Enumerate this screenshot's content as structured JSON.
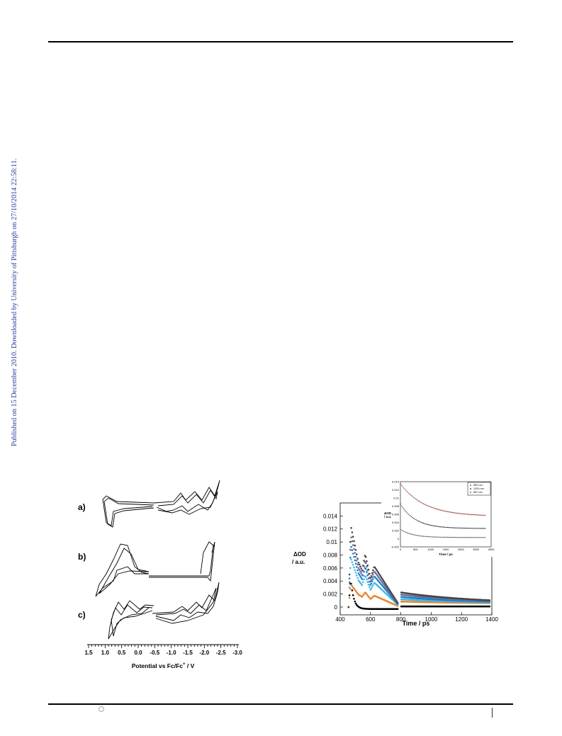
{
  "side_note": "Published on 15 December 2010. Downloaded by University of Pittsburgh on 27/10/2014 22:58:11.",
  "left_figure": {
    "panels": [
      "a)",
      "b)",
      "c)"
    ],
    "x_ticks": [
      "1.5",
      "1.0",
      "0.5",
      "0.0",
      "-0.5",
      "-1.0",
      "-1.5",
      "-2.0",
      "-2.5",
      "-3.0"
    ],
    "xlabel": "Potential vs Fc/Fc",
    "xlabel_superscript": "+",
    "xlabel_unit": " / V"
  },
  "chart_data": {
    "type": "scatter",
    "ylabel_line1": "ΔOD",
    "ylabel_line2": "/ a.u.",
    "xlabel": "Time / ps",
    "x_ticks": [
      "400",
      "600",
      "800",
      "1000",
      "1200",
      "1400"
    ],
    "y_ticks": [
      "0",
      "0.002",
      "0.004",
      "0.006",
      "0.008",
      "0.01",
      "0.012",
      "0.014"
    ],
    "xlim": [
      400,
      1400
    ],
    "ylim": [
      -0.0012,
      0.016
    ],
    "series_colors": [
      "#000000",
      "#e8842a",
      "#44b6e0",
      "#1d7fc9",
      "#6a6a9a",
      "#444444"
    ],
    "inset": {
      "xlabel": "Time / ps",
      "ylabel_line1": "ΔOD",
      "ylabel_line2": "/ a.u.",
      "x_ticks": [
        "0",
        "500",
        "1000",
        "1500",
        "2000",
        "2500",
        "3000"
      ],
      "y_ticks": [
        "-0.002",
        "0",
        "0.002",
        "0.004",
        "0.006",
        "0.008",
        "0.01",
        "0.012",
        "0.014"
      ],
      "xlim": [
        0,
        3000
      ],
      "ylim": [
        -0.002,
        0.014
      ],
      "legend": [
        "550 nm",
        "1200 nm",
        "657 nm"
      ],
      "series": [
        {
          "name": "550 nm",
          "color": "#8a2a2a",
          "A": 0.008,
          "tau": 800,
          "c": 0.0055
        },
        {
          "name": "1200 nm",
          "color": "#222222",
          "A": 0.006,
          "tau": 500,
          "c": 0.0025
        },
        {
          "name": "657 nm",
          "color": "#555555",
          "A": 0.002,
          "tau": 400,
          "c": 0.0003
        }
      ]
    }
  }
}
